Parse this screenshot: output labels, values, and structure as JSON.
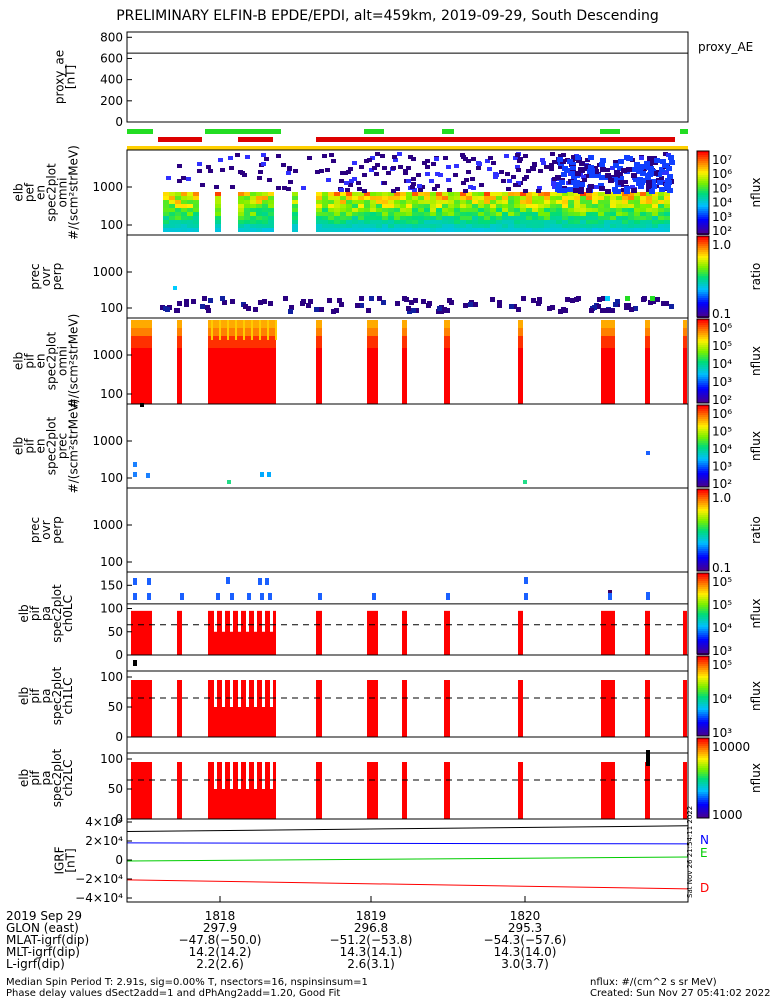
{
  "title": "PRELIMINARY ELFIN-B EPDE/EPDI, alt=459km, 2019-09-29, South Descending",
  "panels": {
    "proxy_ae": {
      "ylabel": [
        "proxy_ae",
        "[nT]"
      ],
      "legend": "proxy_AE",
      "ticks": [
        "800",
        "600",
        "400",
        "200",
        "0"
      ],
      "ylim": [
        0,
        850
      ],
      "value": 650
    },
    "elb_pef_omni": {
      "ylabel": [
        "elb",
        "pef",
        "en",
        "spec2plot",
        "omni",
        "#/(scm²strMeV)"
      ],
      "ticks": [
        "1000",
        "100"
      ],
      "cbar_label": "nflux",
      "cbar_ticks": [
        "10⁷",
        "10⁶",
        "10⁵",
        "10⁴",
        "10³",
        "10²"
      ]
    },
    "prec_ovr_perp_e": {
      "ylabel": [
        "prec",
        "ovr",
        "perp"
      ],
      "ticks": [
        "1000",
        "100"
      ],
      "cbar_label": "ratio",
      "cbar_ticks": [
        "1.0",
        "0.1"
      ]
    },
    "elb_pif_omni": {
      "ylabel": [
        "elb",
        "pif",
        "en",
        "spec2plot",
        "omni",
        "#/(scm²strMeV)"
      ],
      "ticks": [
        "1000",
        "100"
      ],
      "cbar_label": "nflux",
      "cbar_ticks": [
        "10⁶",
        "10⁵",
        "10⁴",
        "10³",
        "10²"
      ]
    },
    "elb_pif_prec": {
      "ylabel": [
        "elb",
        "pif",
        "en",
        "spec2plot",
        "prec",
        "#/(scm²strMeV)"
      ],
      "ticks": [
        "1000",
        "100"
      ],
      "cbar_label": "nflux",
      "cbar_ticks": [
        "10⁶",
        "10⁵",
        "10⁴",
        "10³",
        "10²"
      ]
    },
    "prec_ovr_perp_i": {
      "ylabel": [
        "prec",
        "ovr",
        "perp"
      ],
      "ticks": [
        "1000",
        "100"
      ],
      "cbar_label": "ratio",
      "cbar_ticks": [
        "1.0",
        "0.1"
      ]
    },
    "ch0": {
      "ylabel": [
        "elb",
        "pif",
        "pa",
        "spec2plot",
        "ch0LC"
      ],
      "ticks": [
        "150",
        "100",
        "50",
        "0"
      ],
      "cbar_label": "nflux",
      "cbar_ticks": [
        "10⁵",
        "10⁵",
        "10⁴",
        "10³"
      ]
    },
    "ch1": {
      "ylabel": [
        "elb",
        "pif",
        "pa",
        "spec2plot",
        "ch1LC"
      ],
      "ticks": [
        "100",
        "50",
        "0"
      ],
      "cbar_label": "nflux",
      "cbar_ticks": [
        "10⁵",
        "10⁴",
        "10³"
      ]
    },
    "ch2": {
      "ylabel": [
        "elb",
        "pif",
        "pa",
        "spec2plot",
        "ch2LC"
      ],
      "ticks": [
        "100",
        "50",
        "0"
      ],
      "cbar_label": "nflux",
      "cbar_ticks": [
        "10000",
        "1000"
      ]
    },
    "igrf": {
      "ylabel": [
        "IGRF",
        "[nT]"
      ],
      "ticks": [
        "4×10⁴",
        "2×10⁴",
        "0",
        "−2×10⁴",
        "−4×10⁴"
      ],
      "legend": [
        "N",
        "E",
        "D"
      ],
      "colors": [
        "#0000ff",
        "#00cc00",
        "#ff0000"
      ]
    }
  },
  "chart_data": {
    "type": "heatmap",
    "time_ticks": [
      "1818",
      "1819",
      "1820"
    ],
    "ephemeris": {
      "labels": [
        "2019 Sep 29",
        "GLON (east)",
        "MLAT-igrf(dip)",
        "MLT-igrf(dip)",
        "L-igrf(dip)"
      ],
      "columns": [
        [
          "1818",
          "297.9",
          "−47.8(−50.0)",
          "14.2(14.2)",
          "2.2(2.6)"
        ],
        [
          "1819",
          "296.8",
          "−51.2(−53.8)",
          "14.3(14.1)",
          "2.6(3.1)"
        ],
        [
          "1820",
          "295.3",
          "−54.3(−57.6)",
          "14.3(14.0)",
          "3.0(3.7)"
        ]
      ]
    },
    "proxy_ae_value": 650,
    "pa_dashed_line": 65,
    "igrf": {
      "N": 18000,
      "E": 1000,
      "D": -23000
    }
  },
  "footer": {
    "left1": "Median Spin Period T: 2.91s, sig=0.00% T, nsectors=16, nspinsinsum=1",
    "left2": "Phase delay values dSect2add=1 and dPhAng2add=1.20, Good Fit",
    "right1": "nflux: #/(cm^2 s sr MeV)",
    "right2": "Created: Sun Nov 27 05:41:02 2022",
    "side": "Sat Nov 26 21:54:11 2022"
  }
}
